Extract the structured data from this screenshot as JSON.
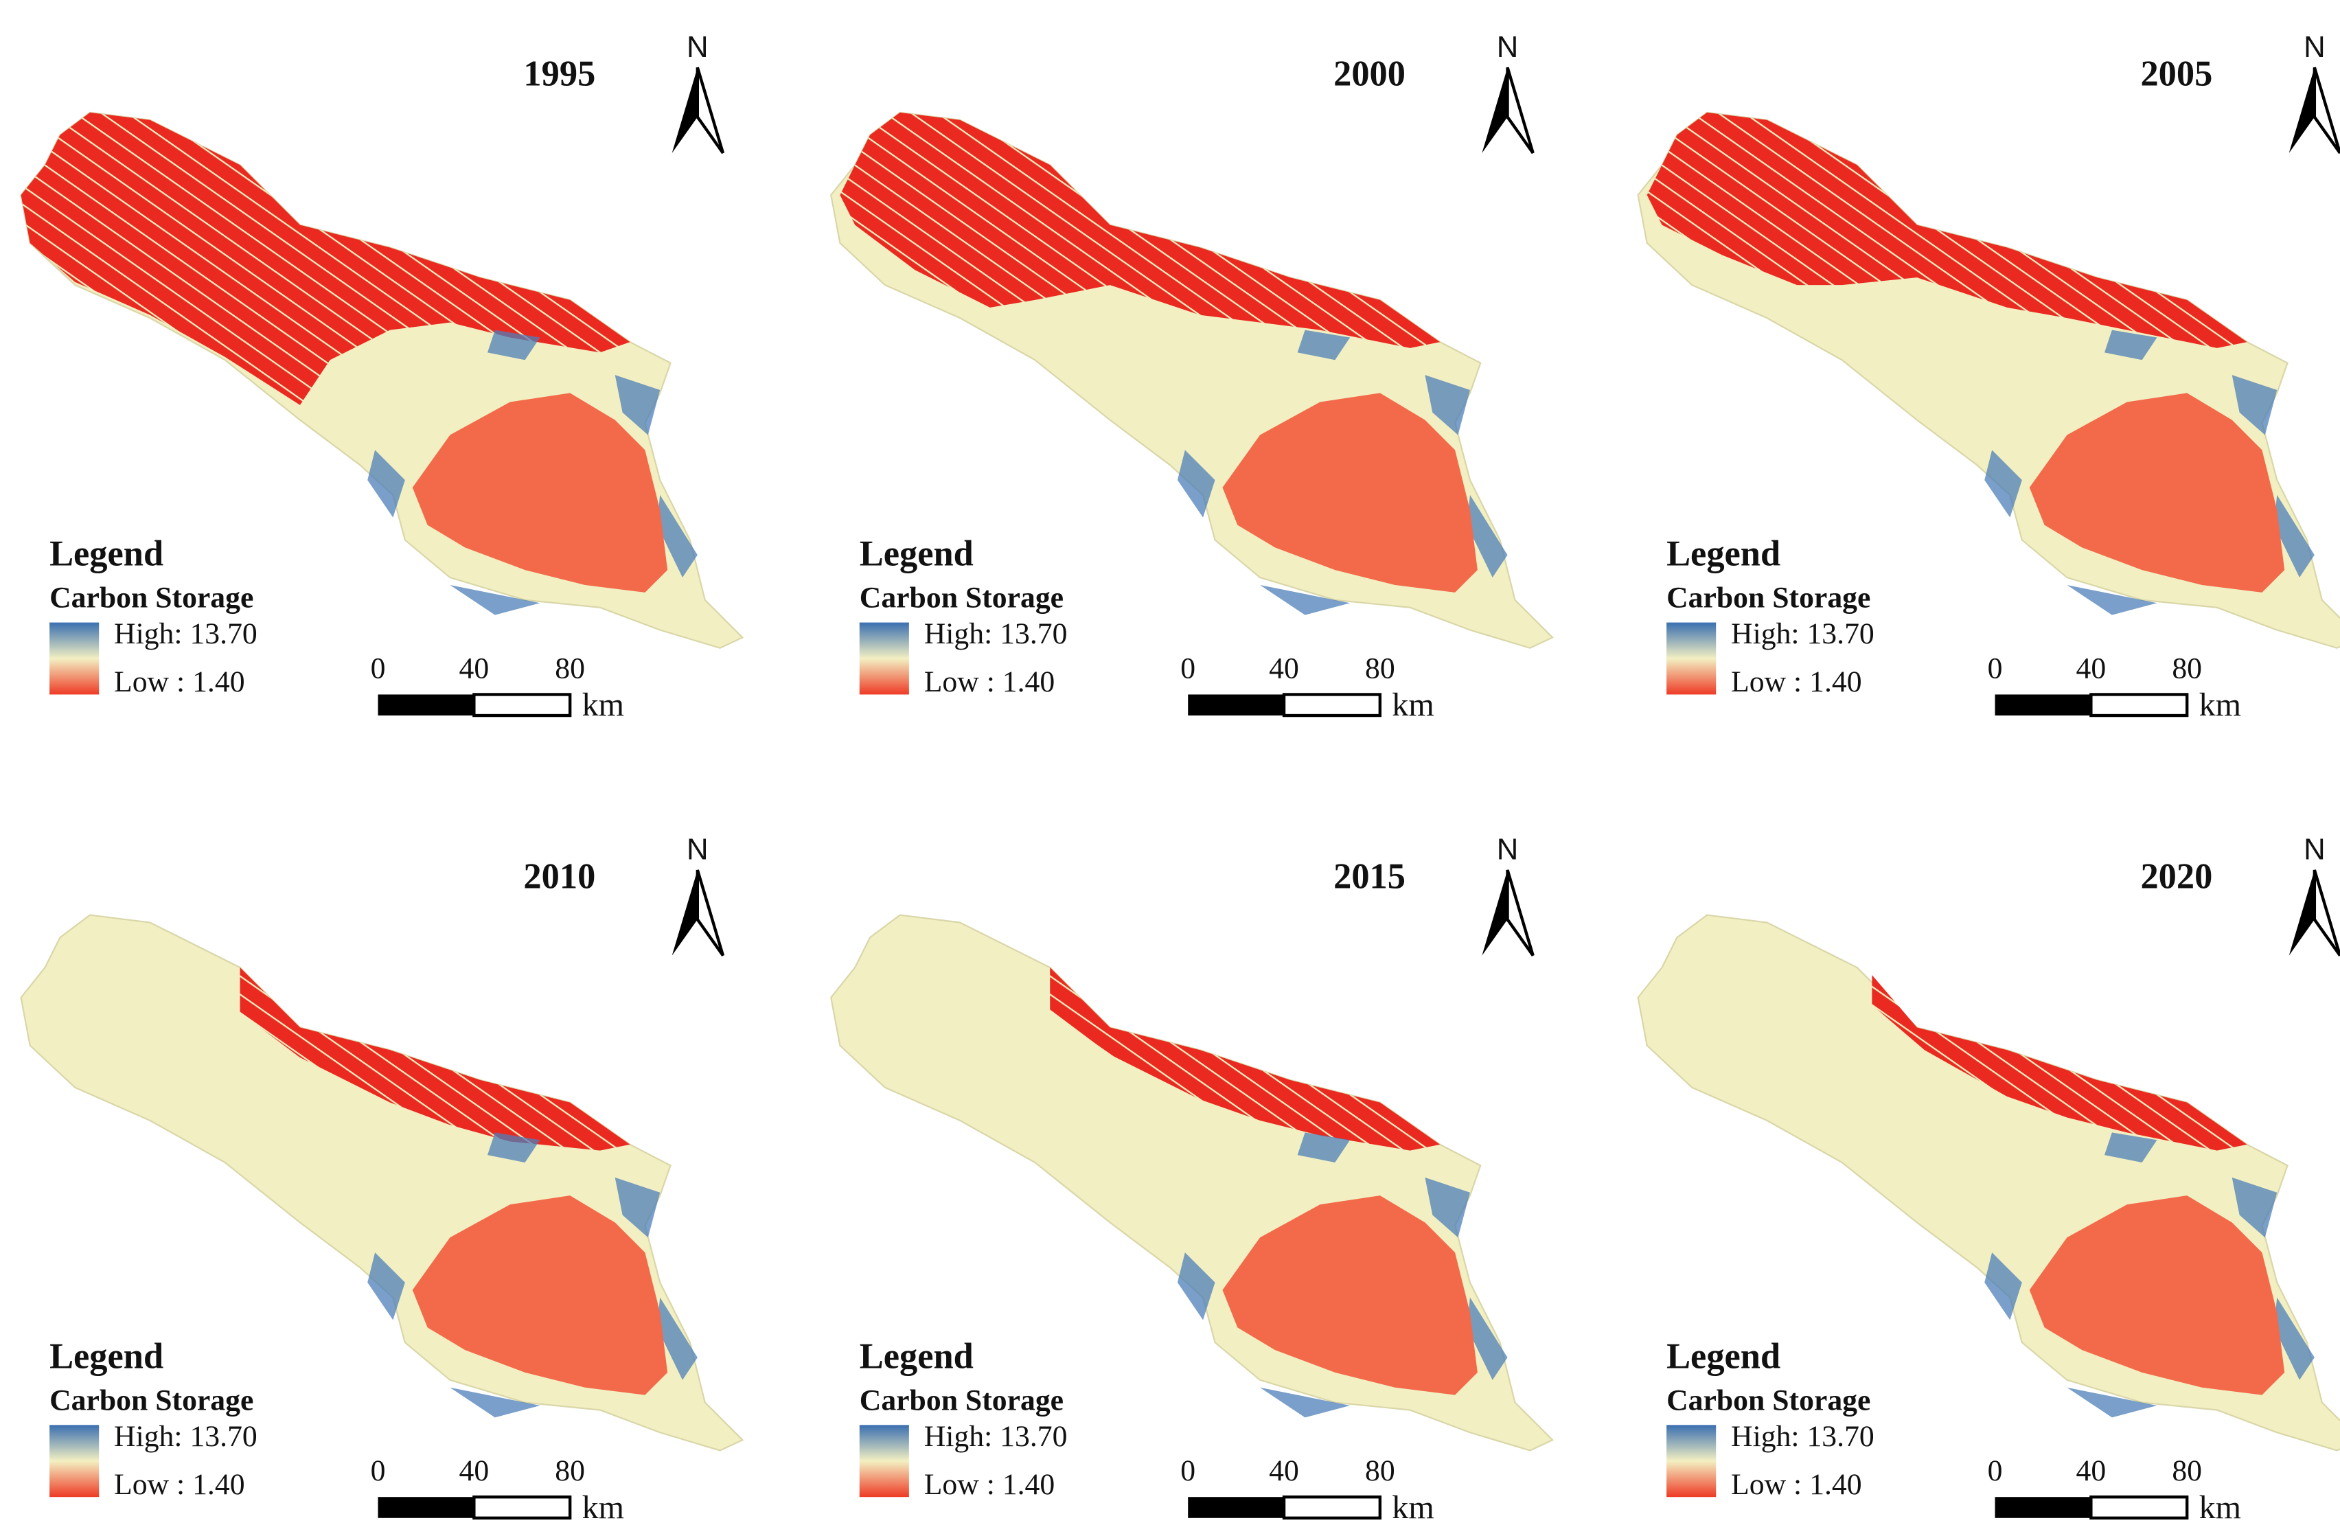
{
  "panels": [
    {
      "year": "1995",
      "north": "N",
      "legend_title": "Legend",
      "legend_subtitle": "Carbon Storage",
      "high": "High: 13.70",
      "low": "Low : 1.40",
      "scale_ticks": [
        0,
        40,
        80
      ],
      "scale_unit": "km"
    },
    {
      "year": "2000",
      "north": "N",
      "legend_title": "Legend",
      "legend_subtitle": "Carbon Storage",
      "high": "High: 13.70",
      "low": "Low : 1.40",
      "scale_ticks": [
        0,
        40,
        80
      ],
      "scale_unit": "km"
    },
    {
      "year": "2005",
      "north": "N",
      "legend_title": "Legend",
      "legend_subtitle": "Carbon Storage",
      "high": "High: 13.70",
      "low": "Low : 1.40",
      "scale_ticks": [
        0,
        40,
        80
      ],
      "scale_unit": "km"
    },
    {
      "year": "2010",
      "north": "N",
      "legend_title": "Legend",
      "legend_subtitle": "Carbon Storage",
      "high": "High: 13.70",
      "low": "Low : 1.40",
      "scale_ticks": [
        0,
        40,
        80
      ],
      "scale_unit": "km"
    },
    {
      "year": "2015",
      "north": "N",
      "legend_title": "Legend",
      "legend_subtitle": "Carbon Storage",
      "high": "High: 13.70",
      "low": "Low : 1.40",
      "scale_ticks": [
        0,
        40,
        80
      ],
      "scale_unit": "km"
    },
    {
      "year": "2020",
      "north": "N",
      "legend_title": "Legend",
      "legend_subtitle": "Carbon Storage",
      "high": "High: 13.70",
      "low": "Low : 1.40",
      "scale_ticks": [
        0,
        40,
        80
      ],
      "scale_unit": "km"
    }
  ]
}
